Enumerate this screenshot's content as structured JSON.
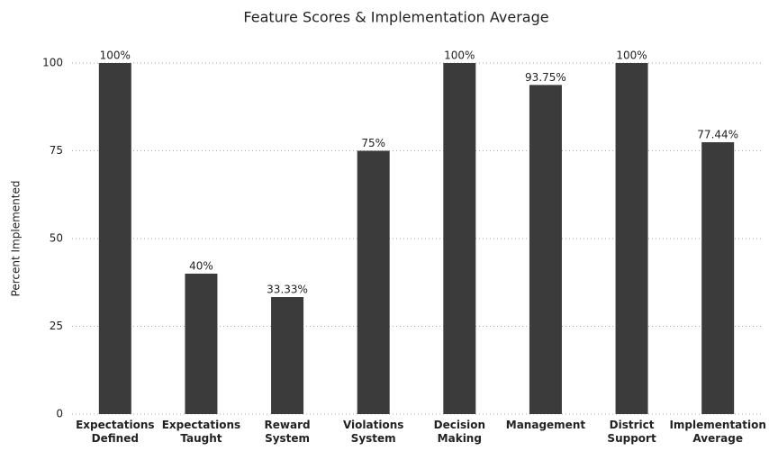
{
  "chart_data": {
    "type": "bar",
    "title": "Feature Scores & Implementation Average",
    "y_label": "Percent Implemented",
    "categories": [
      "Expectations Defined",
      "Expectations Taught",
      "Reward System",
      "Violations System",
      "Decision Making",
      "Management",
      "District Support",
      "Implementation Average"
    ],
    "values": [
      100,
      40,
      33.33,
      75,
      100,
      93.75,
      100,
      77.44
    ],
    "value_labels": [
      "100%",
      "40%",
      "33.33%",
      "75%",
      "100%",
      "93.75%",
      "100%",
      "77.44%"
    ],
    "color": "#3b3b3b",
    "ylim": [
      0,
      100
    ],
    "yticks": [
      0,
      25,
      50,
      75,
      100
    ],
    "grid": true
  }
}
